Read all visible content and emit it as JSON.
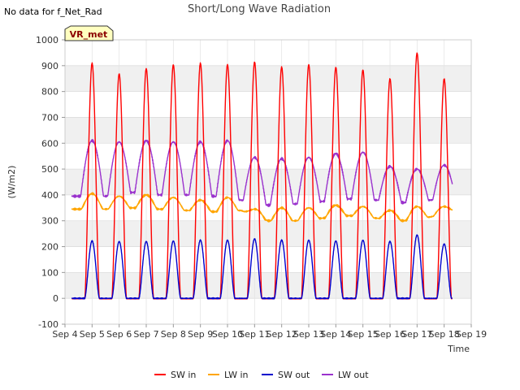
{
  "no_data_note": "No data for f_Net_Rad",
  "badge": "VR_met",
  "chart_data": {
    "type": "line",
    "title": "Short/Long Wave Radiation",
    "xlabel": "Time",
    "ylabel": "(W/m2)",
    "ylim": [
      -100,
      1000
    ],
    "yticks": [
      -100,
      0,
      100,
      200,
      300,
      400,
      500,
      600,
      700,
      800,
      900,
      1000
    ],
    "xlim": [
      4,
      19
    ],
    "xticks": [
      {
        "v": 4,
        "label": "Sep 4"
      },
      {
        "v": 5,
        "label": "Sep 5"
      },
      {
        "v": 6,
        "label": "Sep 6"
      },
      {
        "v": 7,
        "label": "Sep 7"
      },
      {
        "v": 8,
        "label": "Sep 8"
      },
      {
        "v": 9,
        "label": "Sep 9"
      },
      {
        "v": 10,
        "label": "Sep 10"
      },
      {
        "v": 11,
        "label": "Sep 11"
      },
      {
        "v": 12,
        "label": "Sep 12"
      },
      {
        "v": 13,
        "label": "Sep 13"
      },
      {
        "v": 14,
        "label": "Sep 14"
      },
      {
        "v": 15,
        "label": "Sep 15"
      },
      {
        "v": 16,
        "label": "Sep 16"
      },
      {
        "v": 17,
        "label": "Sep 17"
      },
      {
        "v": 18,
        "label": "Sep 18"
      },
      {
        "v": 19,
        "label": "Sep 19"
      }
    ],
    "x_start": 4.25,
    "x_end": 18.3,
    "days": [
      5,
      6,
      7,
      8,
      9,
      10,
      11,
      12,
      13,
      14,
      15,
      16,
      17,
      18
    ],
    "grid": true,
    "legend_position": "bottom",
    "series": [
      {
        "name": "SW in",
        "color": "#ff0000",
        "peaks": [
          910,
          870,
          890,
          905,
          910,
          905,
          915,
          895,
          905,
          895,
          885,
          850,
          950,
          850
        ]
      },
      {
        "name": "LW in",
        "color": "#ffa500",
        "day_values": [
          405,
          395,
          400,
          390,
          380,
          390,
          345,
          350,
          350,
          360,
          355,
          340,
          355,
          355
        ],
        "night_values": [
          345,
          350,
          345,
          340,
          335,
          340,
          300,
          300,
          310,
          320,
          310,
          300,
          315,
          340
        ]
      },
      {
        "name": "SW out",
        "color": "#0000cc",
        "peaks": [
          222,
          220,
          220,
          222,
          225,
          225,
          230,
          225,
          225,
          222,
          225,
          220,
          245,
          210
        ]
      },
      {
        "name": "LW out",
        "color": "#9a32cd",
        "day_values": [
          610,
          605,
          610,
          605,
          605,
          610,
          545,
          540,
          545,
          560,
          565,
          510,
          500,
          515
        ],
        "night_values": [
          395,
          410,
          400,
          400,
          395,
          380,
          360,
          365,
          375,
          385,
          380,
          370,
          380,
          390
        ]
      }
    ]
  }
}
